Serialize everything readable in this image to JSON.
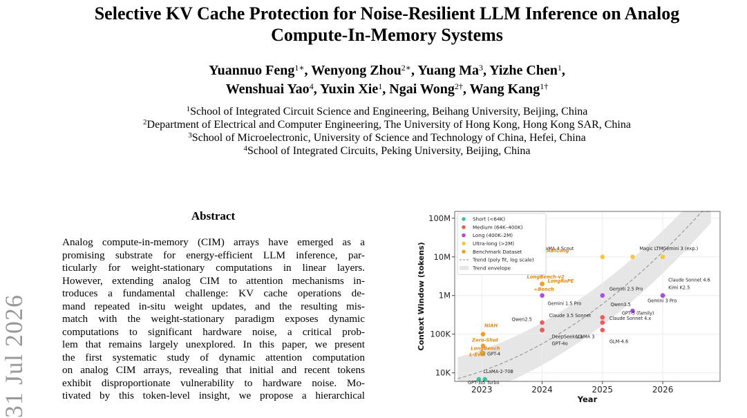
{
  "title_lines": [
    "Selective KV Cache Protection for Noise-Resilient LLM Inference on Analog",
    "Compute-In-Memory Systems"
  ],
  "authors": {
    "line1": [
      {
        "name": "Yuannuo Feng",
        "mark": "1∗",
        "sep": ", "
      },
      {
        "name": "Wenyong Zhou",
        "mark": "2∗",
        "sep": ", "
      },
      {
        "name": "Yuang Ma",
        "mark": "3",
        "sep": ", "
      },
      {
        "name": "Yizhe Chen",
        "mark": "1",
        "sep": ","
      }
    ],
    "line2": [
      {
        "name": "Wenshuai Yao",
        "mark": "4",
        "sep": ", "
      },
      {
        "name": "Yuxin Xie",
        "mark": "1",
        "sep": ", "
      },
      {
        "name": "Ngai Wong",
        "mark": "2†",
        "sep": ", "
      },
      {
        "name": "Wang Kang",
        "mark": "1†",
        "sep": ""
      }
    ]
  },
  "affiliations": [
    {
      "mark": "1",
      "text": "School of Integrated Circuit Science and Engineering, Beihang University, Beijing, China"
    },
    {
      "mark": "2",
      "text": "Department of Electrical and Computer Engineering, The University of Hong Kong, Hong Kong SAR, China"
    },
    {
      "mark": "3",
      "text": "School of Microelectronic, University of Science and Technology of China, Hefei, China"
    },
    {
      "mark": "4",
      "text": "School of Integrated Circuits, Peking University, Beijing, China"
    }
  ],
  "arxiv_date": "31 Jul 2026",
  "abstract": {
    "heading": "Abstract",
    "lines": [
      "Analog compute-in-memory (CIM) arrays have emerged as a",
      "promising substrate for energy-efficient LLM inference, par-",
      "ticularly for weight-stationary computations in linear layers.",
      "However, extending analog CIM to attention mechanisms in-",
      "troduces a fundamental challenge: KV cache operations de-",
      "mand repeated in-situ weight updates, and the resulting mis-",
      "match with the weight-stationary paradigm exposes dynamic",
      "computations to significant hardware noise, a critical prob-",
      "lem that remains largely unexplored. In this paper, we present",
      "the first systematic study of dynamic attention computation",
      "on analog CIM arrays, revealing that initial and recent tokens",
      "exhibit disproportionate vulnerability to hardware noise. Mo-",
      "tivated by this token-level insight, we propose a hierarchical"
    ]
  },
  "chart_data": {
    "type": "scatter",
    "xlabel": "Year",
    "ylabel": "Context Window (tokens)",
    "yscale": "log",
    "xlim": [
      2022.55,
      2026.95
    ],
    "ylim": [
      6000,
      150000000
    ],
    "x_ticks": [
      2023,
      2024,
      2025,
      2026
    ],
    "x_tick_labels": [
      "2023",
      "2024",
      "2025",
      "2026"
    ],
    "y_ticks": [
      10000,
      100000,
      1000000,
      10000000,
      100000000
    ],
    "y_tick_labels": [
      "10K",
      "100K",
      "1M",
      "10M",
      "100M"
    ],
    "grid": true,
    "legend_placement": "top-left",
    "colors": {
      "short": "#3dbfa0",
      "medium": "#ef5a5a",
      "long": "#a94de6",
      "ultra": "#f6c644",
      "bench": "#f0a02a",
      "bench_text": "#e58a10",
      "trend": "#999999",
      "envelope": "#e6e6e6"
    },
    "legend": [
      {
        "label": "Short (<64K)",
        "kind": "dot",
        "color": "#3dbfa0"
      },
      {
        "label": "Medium (64K–400K)",
        "kind": "dot",
        "color": "#ef5a5a"
      },
      {
        "label": "Long (400K–2M)",
        "kind": "dot",
        "color": "#a94de6"
      },
      {
        "label": "Ultra-long (>2M)",
        "kind": "dot",
        "color": "#f6c644"
      },
      {
        "label": "Benchmark Dataset",
        "kind": "dot",
        "color": "#f0a02a"
      },
      {
        "label": "Trend (poly fit, log scale)",
        "kind": "dash",
        "color": "#999999"
      },
      {
        "label": "Trend envelope",
        "kind": "box",
        "color": "#e6e6e6"
      }
    ],
    "models": [
      {
        "label": "GPT-3.5 Turbo",
        "x": 2022.95,
        "y": 4096,
        "cat": "short"
      },
      {
        "label": "LLaMA-2-70B",
        "x": 2023.05,
        "y": 4096,
        "cat": "short"
      },
      {
        "label": "GPT-4",
        "x": 2023.02,
        "y": 32000,
        "cat": "short"
      },
      {
        "label": "Qwen2.5",
        "x": 2024.0,
        "y": 128000,
        "cat": "medium"
      },
      {
        "label": "Claude 3.5 Sonnet",
        "x": 2024.0,
        "y": 200000,
        "cat": "medium"
      },
      {
        "label": "DeepSeek-V3",
        "x": 2024.0,
        "y": 128000,
        "cat": "medium"
      },
      {
        "label": "GPT-4o",
        "x": 2024.0,
        "y": 128000,
        "cat": "medium"
      },
      {
        "label": "LLaMA 3",
        "x": 2024.0,
        "y": 128000,
        "cat": "medium"
      },
      {
        "label": "Claude Sonnet 4.x",
        "x": 2025.0,
        "y": 200000,
        "cat": "medium"
      },
      {
        "label": "GPT-5 (family)",
        "x": 2025.0,
        "y": 272000,
        "cat": "medium"
      },
      {
        "label": "GLM-4.6",
        "x": 2025.0,
        "y": 128000,
        "cat": "medium"
      },
      {
        "label": "Gemini 1.5 Pro",
        "x": 2024.0,
        "y": 1000000,
        "cat": "long"
      },
      {
        "label": "Gemini 2.5 Pro",
        "x": 2025.0,
        "y": 1000000,
        "cat": "long"
      },
      {
        "label": "Qwen3.5",
        "x": 2025.5,
        "y": 400000,
        "cat": "long"
      },
      {
        "label": "Gemini 3 Pro",
        "x": 2026.0,
        "y": 1000000,
        "cat": "long"
      },
      {
        "label": "Claude Sonnet 4.6",
        "x": 2026.0,
        "y": 1000000,
        "cat": "long"
      },
      {
        "label": "Kimi K2.5",
        "x": 2026.0,
        "y": 1000000,
        "cat": "long"
      },
      {
        "label": "LLaMA 4 Scout",
        "x": 2025.0,
        "y": 10000000,
        "cat": "ultra"
      },
      {
        "label": "Magic LTM",
        "x": 2025.5,
        "y": 10000000,
        "cat": "ultra"
      },
      {
        "label": "Gemini 3 (exp.)",
        "x": 2026.0,
        "y": 10000000,
        "cat": "ultra"
      }
    ],
    "benchmarks": [
      {
        "label": "L-Eval",
        "x": 2023.0,
        "y": 32000
      },
      {
        "label": "LongBench",
        "x": 2023.0,
        "y": 32000
      },
      {
        "label": "Zero-Shot",
        "x": 2023.02,
        "y": 50000
      },
      {
        "label": "NIAH",
        "x": 2023.02,
        "y": 100000
      },
      {
        "label": "LongBench-v2",
        "x": 2024.0,
        "y": 2000000
      },
      {
        "label": "∞Bench",
        "x": 2024.0,
        "y": 2000000
      },
      {
        "label": "LongRoPE",
        "x": 2024.0,
        "y": 2000000
      },
      {
        "label": "RABILong",
        "x": 2024.0,
        "y": 10000000
      }
    ]
  }
}
